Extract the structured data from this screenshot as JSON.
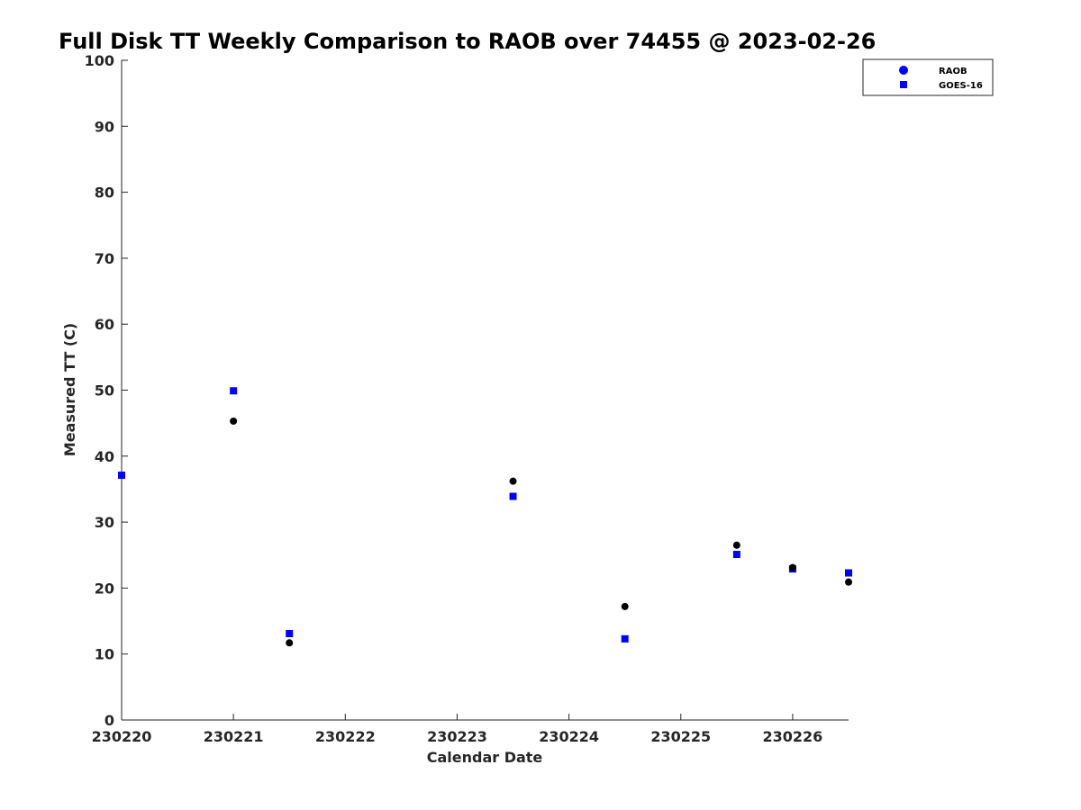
{
  "chart_data": {
    "type": "scatter",
    "title": "Full Disk TT Weekly Comparison to RAOB over 74455 @ 2023-02-26",
    "xlabel": "Calendar Date",
    "ylabel": "Measured TT (C)",
    "xlim": [
      "230220",
      "230226 12Z"
    ],
    "ylim": [
      0,
      100
    ],
    "x_ticks": [
      "230220",
      "230221",
      "230222",
      "230223",
      "230224",
      "230225",
      "230226"
    ],
    "y_ticks": [
      0,
      10,
      20,
      30,
      40,
      50,
      60,
      70,
      80,
      90,
      100
    ],
    "grid": false,
    "legend_position": "top-right",
    "series": [
      {
        "name": "RAOB",
        "marker": "circle",
        "color": "#000000",
        "legend_color": "#0000ff",
        "x": [
          "230220 00Z",
          "230221 00Z",
          "230221 12Z",
          "230223 12Z",
          "230224 12Z",
          "230225 12Z",
          "230226 00Z",
          "230226 12Z"
        ],
        "y": [
          37.1,
          45.3,
          11.7,
          36.2,
          17.2,
          26.5,
          23.1,
          20.9
        ]
      },
      {
        "name": "GOES-16",
        "marker": "square",
        "color": "#0000ff",
        "legend_color": "#0000ff",
        "x": [
          "230220 00Z",
          "230221 00Z",
          "230221 12Z",
          "230223 12Z",
          "230224 12Z",
          "230225 12Z",
          "230226 00Z",
          "230226 12Z"
        ],
        "y": [
          37.1,
          49.9,
          13.1,
          33.9,
          12.3,
          25.1,
          22.9,
          22.3
        ]
      }
    ]
  }
}
